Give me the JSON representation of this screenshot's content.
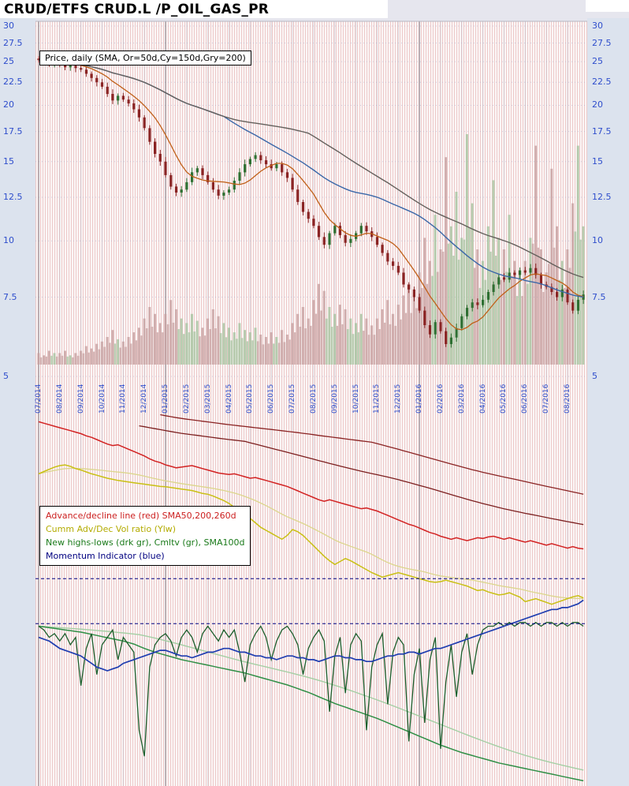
{
  "title": "CRUD/ETFS CRUD.L /P_OIL_GAS_PR",
  "price_panel": {
    "label": "Price, daily (SMA, Or=50d,Cy=150d,Gry=200)",
    "y_ticks": [
      "30",
      "27.5",
      "25",
      "22.5",
      "20",
      "17.5",
      "15",
      "12.5",
      "10",
      "7.5",
      "5"
    ],
    "scale": "log",
    "y_range": [
      5,
      30
    ]
  },
  "x_axis": {
    "labels": [
      "07/2014",
      "08/2014",
      "09/2014",
      "10/2014",
      "11/2014",
      "12/2014",
      "01/2015",
      "02/2015",
      "03/2015",
      "04/2015",
      "05/2015",
      "06/2015",
      "07/2015",
      "08/2015",
      "09/2015",
      "10/2015",
      "11/2015",
      "12/2015",
      "01/2016",
      "02/2016",
      "03/2016",
      "04/2016",
      "05/2016",
      "06/2016",
      "07/2016",
      "08/2016"
    ]
  },
  "legend": {
    "lines": [
      {
        "text": "Advance/decline line (red) SMA50,200,260d",
        "color": "#cc2020"
      },
      {
        "text": "Cumm Adv/Dec Vol ratio (Ylw)",
        "color": "#b3ab00"
      },
      {
        "text": "New highs-lows (drk gr), Cmltv (gr), SMA100d",
        "color": "#1a7a1a"
      },
      {
        "text": "Momentum Indicator (blue)",
        "color": "#000080"
      }
    ]
  },
  "colors": {
    "axis_text": "#2f4ecc",
    "candle_up": "#2e7032",
    "candle_down": "#8a2424",
    "vol_up": "#a6c4a0",
    "vol_down": "#c7a0a0",
    "sma50": "#c06018",
    "sma150": "#3a67a8",
    "sma200": "#64605c",
    "grid_month": "#b9b9c6",
    "grid_year": "#77777f",
    "stripe": "#edc9c9"
  },
  "chart_data": [
    {
      "type": "candlestick",
      "title": "CRUD.L daily price with SMA overlays",
      "x_unit": "weekly samples 07/2014 - 08/2016",
      "y_scale": "log",
      "y_range": [
        5,
        30
      ],
      "close": [
        25.2,
        25.0,
        24.8,
        24.9,
        24.6,
        24.3,
        24.5,
        24.2,
        24.0,
        23.5,
        23.0,
        22.5,
        22.0,
        21.2,
        20.5,
        21.0,
        20.6,
        20.2,
        19.6,
        18.8,
        17.8,
        16.6,
        15.6,
        15.0,
        14.0,
        13.2,
        12.8,
        13.0,
        13.5,
        14.2,
        14.5,
        14.0,
        13.5,
        13.0,
        12.6,
        12.8,
        13.0,
        13.6,
        14.2,
        14.8,
        15.2,
        15.5,
        15.1,
        14.8,
        14.5,
        14.8,
        14.2,
        13.8,
        13.0,
        12.2,
        11.6,
        11.2,
        10.8,
        10.2,
        9.8,
        10.4,
        10.8,
        10.3,
        9.9,
        10.1,
        10.4,
        10.8,
        10.5,
        10.2,
        9.8,
        9.4,
        9.0,
        8.8,
        8.5,
        8.0,
        7.8,
        7.5,
        7.0,
        6.5,
        6.2,
        6.6,
        6.3,
        5.9,
        6.1,
        6.4,
        6.8,
        7.1,
        7.3,
        7.2,
        7.4,
        7.7,
        8.0,
        8.3,
        8.2,
        8.5,
        8.4,
        8.6,
        8.5,
        8.7,
        8.4,
        8.0,
        7.9,
        7.7,
        7.5,
        7.8,
        7.3,
        7.0,
        7.4,
        7.6
      ],
      "sma_overlays": [
        {
          "name": "SMA50d",
          "color": "#c06018"
        },
        {
          "name": "SMA150d",
          "color": "#3a67a8"
        },
        {
          "name": "SMA200d",
          "color": "#64605c"
        }
      ]
    },
    {
      "type": "bar",
      "title": "volume",
      "values": [
        0.05,
        0.04,
        0.06,
        0.05,
        0.05,
        0.06,
        0.04,
        0.05,
        0.06,
        0.08,
        0.07,
        0.09,
        0.1,
        0.12,
        0.15,
        0.11,
        0.1,
        0.12,
        0.14,
        0.16,
        0.2,
        0.25,
        0.22,
        0.18,
        0.22,
        0.28,
        0.24,
        0.2,
        0.18,
        0.22,
        0.19,
        0.16,
        0.2,
        0.24,
        0.21,
        0.18,
        0.16,
        0.14,
        0.18,
        0.15,
        0.14,
        0.16,
        0.13,
        0.12,
        0.14,
        0.12,
        0.15,
        0.13,
        0.18,
        0.22,
        0.25,
        0.2,
        0.28,
        0.35,
        0.32,
        0.25,
        0.22,
        0.26,
        0.24,
        0.2,
        0.18,
        0.22,
        0.2,
        0.17,
        0.2,
        0.24,
        0.28,
        0.22,
        0.26,
        0.3,
        0.34,
        0.3,
        0.4,
        0.55,
        0.45,
        0.65,
        0.5,
        0.9,
        0.6,
        0.75,
        0.55,
        1.0,
        0.7,
        0.5,
        0.45,
        0.6,
        0.8,
        0.55,
        0.5,
        0.65,
        0.45,
        0.4,
        0.45,
        0.55,
        0.95,
        0.5,
        0.4,
        0.85,
        0.6,
        0.45,
        0.5,
        0.7,
        0.95,
        0.6
      ]
    },
    {
      "type": "line",
      "title": "lower indicator panel",
      "unit": "percent of panel height measured from panel top",
      "series": [
        {
          "name": "advance_decline",
          "color": "#d22222",
          "values": [
            2,
            2.4,
            2.8,
            3.2,
            3.6,
            4,
            4.4,
            4.8,
            5.2,
            5.8,
            6.2,
            6.8,
            7.4,
            8,
            8.4,
            8.2,
            8.8,
            9.4,
            10,
            10.6,
            11.2,
            12,
            12.6,
            13,
            13.6,
            14,
            14.4,
            14.2,
            14,
            13.8,
            14.2,
            14.6,
            15,
            15.4,
            15.8,
            16,
            16.2,
            16,
            16.4,
            16.8,
            17.2,
            17,
            17.4,
            17.8,
            18.2,
            18.6,
            19,
            19.4,
            20,
            20.6,
            21.2,
            21.8,
            22.4,
            23,
            23.4,
            23,
            23.4,
            23.8,
            24.2,
            24.6,
            25,
            25.4,
            25.2,
            25.6,
            26,
            26.6,
            27.2,
            27.8,
            28.4,
            29,
            29.6,
            30,
            30.6,
            31.2,
            31.8,
            32.2,
            32.8,
            33.2,
            33.6,
            33.2,
            33.6,
            34,
            33.6,
            33.2,
            33.4,
            33,
            32.8,
            33.2,
            33.6,
            33.2,
            33.6,
            34,
            34.4,
            34,
            34.4,
            34.8,
            35.2,
            34.8,
            35.2,
            35.6,
            36,
            35.6,
            36,
            36.2
          ]
        },
        {
          "name": "cumm_adv_dec_vol_ratio",
          "color": "#c9c014",
          "values": [
            16,
            15.4,
            14.8,
            14.2,
            13.8,
            13.6,
            14,
            14.6,
            15,
            15.5,
            16,
            16.4,
            16.8,
            17.2,
            17.5,
            17.8,
            18,
            18.2,
            18.4,
            18.6,
            18.8,
            19,
            19.2,
            19.4,
            19.5,
            19.7,
            19.9,
            20.1,
            20.3,
            20.5,
            20.9,
            21.3,
            21.5,
            22,
            22.6,
            23.2,
            24,
            25,
            26,
            27,
            28,
            29.2,
            30.4,
            31.2,
            32,
            32.8,
            33.6,
            32.6,
            31,
            31.6,
            32.6,
            34,
            35.4,
            36.8,
            38.2,
            39.4,
            40.4,
            39.6,
            38.8,
            39.4,
            40.2,
            41,
            41.8,
            42.6,
            43.2,
            43.8,
            43.4,
            43,
            42.6,
            43,
            43.4,
            43.8,
            44.2,
            44.6,
            45,
            45.2,
            45,
            44.6,
            45,
            45.4,
            45.8,
            46.2,
            46.8,
            47.4,
            47.2,
            47.8,
            48.2,
            48.6,
            48.4,
            48,
            48.6,
            49.2,
            50.4,
            50,
            49.6,
            50.1,
            50.6,
            51.1,
            50.6,
            50.1,
            49.6,
            49.1,
            48.8,
            49.4
          ]
        },
        {
          "name": "new_highs_lows",
          "color": "#1c5e2c",
          "values": [
            57,
            58,
            60,
            59,
            61,
            59,
            62,
            60,
            73,
            63,
            59,
            70,
            62,
            60,
            58,
            66,
            60,
            62,
            64,
            85,
            92,
            68,
            62,
            60,
            59,
            61,
            65,
            60,
            58,
            60,
            64,
            59,
            57,
            59,
            61,
            58,
            60,
            58,
            64,
            72,
            62,
            59,
            57,
            60,
            66,
            61,
            58,
            57,
            59,
            62,
            70,
            63,
            60,
            58,
            61,
            80,
            65,
            60,
            75,
            62,
            59,
            61,
            85,
            68,
            62,
            59,
            78,
            64,
            60,
            62,
            88,
            70,
            63,
            83,
            66,
            60,
            90,
            72,
            62,
            76,
            64,
            59,
            70,
            62,
            58,
            57,
            57,
            56,
            57,
            56,
            57,
            56,
            56,
            57,
            56,
            57,
            56,
            56,
            57,
            56,
            57,
            56,
            56,
            57
          ]
        },
        {
          "name": "cumulative_highs_lows",
          "color": "#2f8f46",
          "values": [
            57,
            57.2,
            57.4,
            57.6,
            57.8,
            58,
            58.2,
            58.4,
            58.6,
            58.9,
            59.2,
            59.5,
            59.8,
            60.1,
            60.4,
            60.7,
            61,
            61.4,
            61.8,
            62.4,
            63,
            63.5,
            64,
            64.4,
            64.8,
            65.2,
            65.6,
            66,
            66.3,
            66.6,
            66.9,
            67.2,
            67.5,
            67.8,
            68.1,
            68.4,
            68.7,
            69,
            69.3,
            69.6,
            70,
            70.4,
            70.8,
            71.2,
            71.6,
            72,
            72.4,
            72.8,
            73.3,
            73.8,
            74.3,
            74.8,
            75.4,
            76,
            76.6,
            77.2,
            77.8,
            78.3,
            78.8,
            79.3,
            79.8,
            80.3,
            80.8,
            81.3,
            81.8,
            82.4,
            83,
            83.6,
            84.2,
            84.8,
            85.4,
            86,
            86.6,
            87.2,
            87.8,
            88.4,
            89,
            89.5,
            90,
            90.5,
            91,
            91.4,
            91.8,
            92.2,
            92.6,
            93,
            93.4,
            93.8,
            94.1,
            94.4,
            94.7,
            95,
            95.3,
            95.6,
            95.9,
            96.2,
            96.5,
            96.8,
            97.1,
            97.4,
            97.7,
            98,
            98.3,
            98.6
          ]
        },
        {
          "name": "momentum",
          "color": "#1f3db0",
          "values": [
            60,
            60.5,
            61,
            62,
            63,
            63.5,
            64,
            64.5,
            65,
            66,
            67,
            68,
            68.5,
            69,
            68.5,
            68,
            67,
            66.5,
            66,
            65.5,
            65,
            64.5,
            64,
            63.5,
            63.5,
            64,
            64.5,
            65,
            65,
            65.5,
            65,
            64.5,
            64,
            64,
            63.5,
            63,
            63,
            63.5,
            64,
            64,
            64.5,
            65,
            65,
            65.5,
            65.5,
            66,
            65.5,
            65,
            65,
            65.5,
            65.5,
            66,
            66,
            66.5,
            66,
            65.5,
            65,
            65,
            65.5,
            65.5,
            66,
            66,
            66.5,
            66.5,
            66,
            65.5,
            65,
            65,
            64.5,
            64.5,
            64,
            64,
            64.5,
            64,
            63.5,
            63,
            63,
            62.5,
            62,
            61.5,
            61,
            60.5,
            60,
            59.5,
            59,
            58.5,
            58,
            57.5,
            57,
            56.5,
            56,
            55.5,
            55,
            54.5,
            54,
            53.5,
            53,
            52.5,
            52.5,
            52,
            52,
            51.5,
            51,
            50
          ]
        }
      ],
      "reference_lines": [
        {
          "y_pct": 44.2,
          "style": "dashed",
          "color": "#000080"
        },
        {
          "y_pct": 56.3,
          "style": "dashed",
          "color": "#000080"
        }
      ]
    }
  ]
}
